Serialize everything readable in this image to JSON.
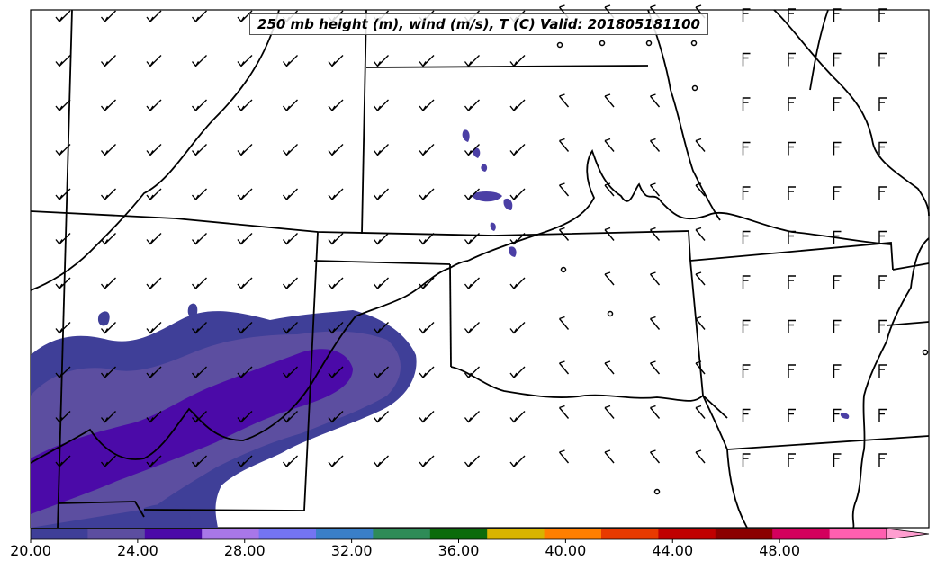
{
  "title": "250 mb height (m), wind (m/s), T (C) Valid: 201805181100",
  "colorbar": {
    "tick_labels": [
      "20.00",
      "24.00",
      "28.00",
      "32.00",
      "36.00",
      "40.00",
      "44.00",
      "48.00"
    ],
    "min": 20,
    "max": 52,
    "extend": "max",
    "colors": [
      "#3f3f98",
      "#5c4ea0",
      "#4b0aa8",
      "#a877e8",
      "#7474f2",
      "#3a7fc8",
      "#2e8b57",
      "#0b6b0b",
      "#d8b400",
      "#ff7f00",
      "#e83a00",
      "#c00000",
      "#8b0000",
      "#d3005d",
      "#ff5fb0",
      "#ff9ed0"
    ]
  },
  "shading_colors": {
    "temp_20_22": "#3f3f98",
    "temp_22_24": "#5c4ea0",
    "temp_24_26": "#4b0aa8"
  },
  "line_color": "#000000"
}
